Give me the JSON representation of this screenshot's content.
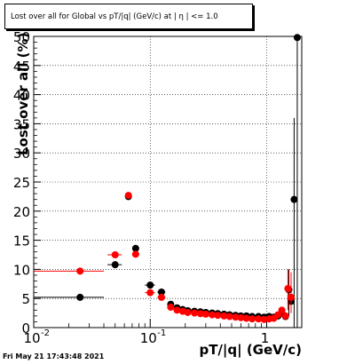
{
  "title": "Lost over all for Global vs pT/|q| (GeV/c) at | η | <= 1.0",
  "timestamp": "Fri May 21 17:43:48 2021",
  "chart_data": {
    "type": "scatter",
    "title": "Lost over all for Global vs pT/|q| (GeV/c) at | η | <= 1.0",
    "xlabel": "pT/|q| (GeV/c)",
    "ylabel": "Lost over all (%)",
    "xscale": "log",
    "xlim": [
      0.01,
      2.0
    ],
    "ylim": [
      0,
      50
    ],
    "xticks": [
      0.01,
      0.1,
      1
    ],
    "xtick_labels": [
      [
        "10",
        "-2"
      ],
      [
        "10",
        "-1"
      ],
      [
        "1",
        ""
      ]
    ],
    "yticks": [
      0,
      5,
      10,
      15,
      20,
      25,
      30,
      35,
      40,
      45,
      50
    ],
    "grid": true,
    "legend": "none",
    "series": [
      {
        "color": "#000000",
        "points": [
          {
            "x": 0.025,
            "y": 5.2,
            "xlo": 0.01,
            "xhi": 0.04
          },
          {
            "x": 0.05,
            "y": 10.8,
            "xlo": 0.043,
            "xhi": 0.057
          },
          {
            "x": 0.065,
            "y": 22.5,
            "xlo": 0.061,
            "xhi": 0.069
          },
          {
            "x": 0.075,
            "y": 13.6,
            "xlo": 0.071,
            "xhi": 0.079
          },
          {
            "x": 0.1,
            "y": 7.3,
            "xlo": 0.09,
            "xhi": 0.11
          },
          {
            "x": 0.125,
            "y": 6.1,
            "xlo": 0.115,
            "xhi": 0.135
          },
          {
            "x": 0.15,
            "y": 4.0
          },
          {
            "x": 0.17,
            "y": 3.4
          },
          {
            "x": 0.19,
            "y": 3.1
          },
          {
            "x": 0.21,
            "y": 2.9
          },
          {
            "x": 0.24,
            "y": 2.8
          },
          {
            "x": 0.27,
            "y": 2.7
          },
          {
            "x": 0.3,
            "y": 2.6
          },
          {
            "x": 0.34,
            "y": 2.5
          },
          {
            "x": 0.38,
            "y": 2.4
          },
          {
            "x": 0.43,
            "y": 2.3
          },
          {
            "x": 0.48,
            "y": 2.2
          },
          {
            "x": 0.54,
            "y": 2.1
          },
          {
            "x": 0.6,
            "y": 2.0
          },
          {
            "x": 0.67,
            "y": 2.0
          },
          {
            "x": 0.75,
            "y": 1.9
          },
          {
            "x": 0.85,
            "y": 1.9
          },
          {
            "x": 0.95,
            "y": 1.8
          },
          {
            "x": 1.05,
            "y": 1.9
          },
          {
            "x": 1.15,
            "y": 1.8
          },
          {
            "x": 1.25,
            "y": 2.0
          },
          {
            "x": 1.35,
            "y": 2.5
          },
          {
            "x": 1.45,
            "y": 1.9
          },
          {
            "x": 1.55,
            "y": 6.5,
            "ylo": 2.0,
            "yhi": 10.0
          },
          {
            "x": 1.62,
            "y": 4.5,
            "ylo": 2.5,
            "yhi": 7.5
          },
          {
            "x": 1.72,
            "y": 22.0,
            "ylo": 0,
            "yhi": 36.0
          },
          {
            "x": 1.83,
            "y": 49.8,
            "ylo": 0,
            "yhi": 50.0
          }
        ]
      },
      {
        "color": "#ff0000",
        "points": [
          {
            "x": 0.025,
            "y": 9.7,
            "xlo": 0.01,
            "xhi": 0.04
          },
          {
            "x": 0.05,
            "y": 12.5,
            "xlo": 0.043,
            "xhi": 0.057
          },
          {
            "x": 0.065,
            "y": 22.7,
            "xlo": 0.061,
            "xhi": 0.069
          },
          {
            "x": 0.075,
            "y": 12.6,
            "xlo": 0.071,
            "xhi": 0.079
          },
          {
            "x": 0.1,
            "y": 6.0,
            "xlo": 0.09,
            "xhi": 0.11
          },
          {
            "x": 0.125,
            "y": 5.2,
            "xlo": 0.115,
            "xhi": 0.135
          },
          {
            "x": 0.15,
            "y": 3.5
          },
          {
            "x": 0.17,
            "y": 3.0
          },
          {
            "x": 0.19,
            "y": 2.8
          },
          {
            "x": 0.21,
            "y": 2.6
          },
          {
            "x": 0.24,
            "y": 2.5
          },
          {
            "x": 0.27,
            "y": 2.4
          },
          {
            "x": 0.3,
            "y": 2.3
          },
          {
            "x": 0.34,
            "y": 2.2
          },
          {
            "x": 0.38,
            "y": 2.1
          },
          {
            "x": 0.43,
            "y": 2.0
          },
          {
            "x": 0.48,
            "y": 1.9
          },
          {
            "x": 0.54,
            "y": 1.8
          },
          {
            "x": 0.6,
            "y": 1.7
          },
          {
            "x": 0.67,
            "y": 1.6
          },
          {
            "x": 0.75,
            "y": 1.5
          },
          {
            "x": 0.85,
            "y": 1.5
          },
          {
            "x": 0.95,
            "y": 1.4
          },
          {
            "x": 1.05,
            "y": 1.5
          },
          {
            "x": 1.15,
            "y": 1.6
          },
          {
            "x": 1.25,
            "y": 2.2
          },
          {
            "x": 1.35,
            "y": 3.0
          },
          {
            "x": 1.45,
            "y": 2.0
          },
          {
            "x": 1.52,
            "y": 6.7,
            "ylo": 3.0,
            "yhi": 10.0
          },
          {
            "x": 1.62,
            "y": 5.2,
            "ylo": 2.5,
            "yhi": 9.5
          }
        ]
      }
    ]
  }
}
